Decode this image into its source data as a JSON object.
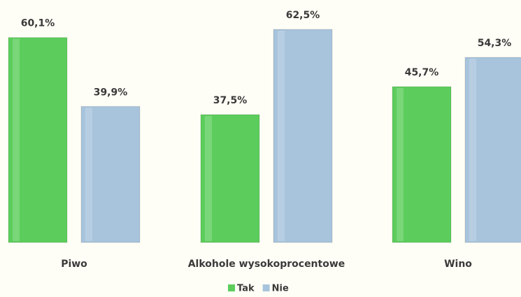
{
  "chart_data": {
    "type": "bar",
    "categories": [
      "Piwo",
      "Alkohole wysokoprocentowe",
      "Wino"
    ],
    "series": [
      {
        "name": "Tak",
        "color": "#5ccd5c",
        "values": [
          60.1,
          37.5,
          45.7
        ],
        "value_labels": [
          "60,1%",
          "37,5%",
          "45,7%"
        ]
      },
      {
        "name": "Nie",
        "color": "#a8c4dc",
        "values": [
          39.9,
          62.5,
          54.3
        ],
        "value_labels": [
          "39,9%",
          "62,5%",
          "54,3%"
        ]
      }
    ],
    "legend": "bottom"
  }
}
